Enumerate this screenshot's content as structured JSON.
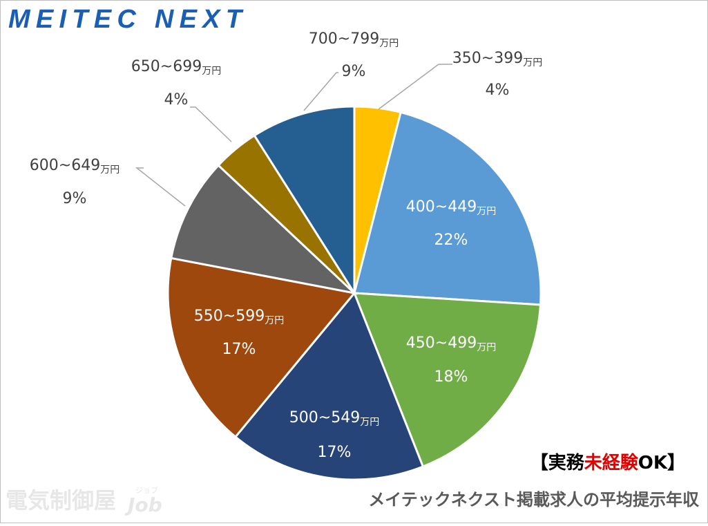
{
  "chart_data": {
    "type": "pie",
    "brand": "MEITEC NEXT",
    "title": "メイテックネクスト掲載求人の平均提示年収",
    "badge": [
      "【実務",
      "未経験",
      "OK】"
    ],
    "watermark": {
      "main": "電気制御屋",
      "kana": "ジョブ",
      "latin": "Job"
    },
    "unit": "万円",
    "categories": [
      "350~399",
      "400~449",
      "450~499",
      "500~549",
      "550~599",
      "600~649",
      "650~699",
      "700~799"
    ],
    "values": [
      4,
      22,
      18,
      17,
      17,
      9,
      4,
      9
    ],
    "value_labels": [
      "4%",
      "22%",
      "18%",
      "17%",
      "17%",
      "9%",
      "4%",
      "9%"
    ],
    "colors": [
      "#ffc000",
      "#5b9bd5",
      "#70ad47",
      "#264478",
      "#9e480e",
      "#636363",
      "#997300",
      "#255e91"
    ]
  }
}
